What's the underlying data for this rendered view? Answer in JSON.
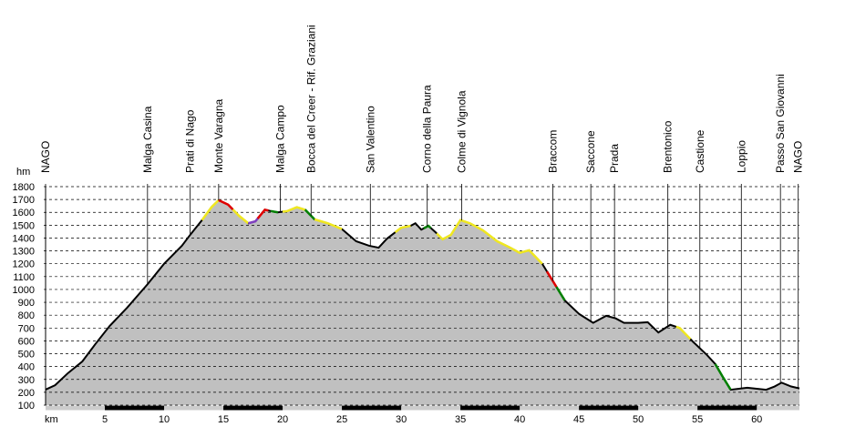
{
  "chart_data": {
    "type": "area",
    "ylabel": "hm",
    "xlabel": "km",
    "xlim": [
      0,
      63.6
    ],
    "ylim": [
      100,
      1800
    ],
    "xticks": [
      5,
      10,
      15,
      20,
      25,
      30,
      35,
      40,
      45,
      50,
      55,
      60
    ],
    "yticks": [
      100,
      200,
      300,
      400,
      500,
      600,
      700,
      800,
      900,
      1000,
      1100,
      1200,
      1300,
      1400,
      1500,
      1600,
      1700,
      1800
    ],
    "grid": true,
    "color": "#c0c0c0",
    "line_color": "#000000",
    "x": [
      0,
      0.8,
      1.9,
      3.1,
      4.2,
      5.4,
      6.9,
      8.6,
      10,
      11.5,
      12.2,
      13.2,
      14.0,
      14.6,
      15.4,
      16.3,
      17.1,
      17.7,
      18.5,
      19.0,
      19.6,
      20.4,
      21.2,
      21.9,
      22.7,
      23.8,
      25.0,
      26.2,
      27.3,
      28.1,
      28.8,
      30.0,
      30.8,
      31.2,
      31.7,
      32.3,
      32.9,
      33.5,
      34.2,
      35.0,
      35.8,
      36.9,
      38.1,
      39.2,
      40.0,
      40.8,
      41.9,
      43.1,
      43.8,
      45.0,
      46.2,
      47.3,
      48.1,
      48.8,
      50.0,
      50.8,
      51.7,
      52.7,
      53.5,
      54.6,
      55.8,
      56.5,
      57.1,
      57.8,
      59.2,
      60.8,
      61.5,
      62.1,
      62.9,
      63.6
    ],
    "values": [
      221,
      255,
      350,
      440,
      575,
      715,
      860,
      1040,
      1200,
      1340,
      1425,
      1540,
      1640,
      1695,
      1660,
      1575,
      1515,
      1530,
      1620,
      1610,
      1600,
      1610,
      1640,
      1620,
      1545,
      1515,
      1470,
      1375,
      1340,
      1325,
      1395,
      1480,
      1495,
      1515,
      1465,
      1495,
      1445,
      1390,
      1425,
      1540,
      1515,
      1460,
      1375,
      1325,
      1285,
      1305,
      1200,
      1020,
      915,
      810,
      740,
      795,
      775,
      740,
      740,
      745,
      665,
      725,
      700,
      595,
      490,
      420,
      325,
      220,
      235,
      220,
      245,
      275,
      245,
      230
    ],
    "highlights": [
      {
        "from": 13.2,
        "to": 14.6,
        "color": "#f0e820"
      },
      {
        "from": 14.6,
        "to": 15.8,
        "color": "#e00000"
      },
      {
        "from": 15.8,
        "to": 17.1,
        "color": "#f0e820"
      },
      {
        "from": 17.1,
        "to": 17.9,
        "color": "#8040c0"
      },
      {
        "from": 17.9,
        "to": 18.8,
        "color": "#e00000"
      },
      {
        "from": 19.0,
        "to": 19.6,
        "color": "#008000"
      },
      {
        "from": 20.0,
        "to": 21.9,
        "color": "#f0e820"
      },
      {
        "from": 21.9,
        "to": 22.7,
        "color": "#008000"
      },
      {
        "from": 22.7,
        "to": 25.0,
        "color": "#f0e820"
      },
      {
        "from": 29.5,
        "to": 30.8,
        "color": "#f0e820"
      },
      {
        "from": 31.9,
        "to": 32.5,
        "color": "#008000"
      },
      {
        "from": 33.0,
        "to": 41.9,
        "color": "#f0e820"
      },
      {
        "from": 42.3,
        "to": 43.1,
        "color": "#e00000"
      },
      {
        "from": 43.1,
        "to": 43.8,
        "color": "#008000"
      },
      {
        "from": 53.2,
        "to": 54.4,
        "color": "#f0e820"
      },
      {
        "from": 56.5,
        "to": 57.8,
        "color": "#008000"
      }
    ],
    "waypoints": [
      {
        "name": "NAGO",
        "km": 0
      },
      {
        "name": "Malga Casina",
        "km": 8.6
      },
      {
        "name": "Prati di Nago",
        "km": 12.2
      },
      {
        "name": "Monte Varagna",
        "km": 14.6
      },
      {
        "name": "Malga Campo",
        "km": 19.8
      },
      {
        "name": "Bocca del Creer - Rif. Graziani",
        "km": 22.4
      },
      {
        "name": "San Valentino",
        "km": 27.4
      },
      {
        "name": "Corno della Paura",
        "km": 32.2
      },
      {
        "name": "Colme di Vignola",
        "km": 35.1
      },
      {
        "name": "Braccom",
        "km": 42.8
      },
      {
        "name": "Saccone",
        "km": 46.0
      },
      {
        "name": "Prada",
        "km": 48.0
      },
      {
        "name": "Brentonico",
        "km": 52.5
      },
      {
        "name": "Castione",
        "km": 55.2
      },
      {
        "name": "Loppio",
        "km": 58.7
      },
      {
        "name": "Passo San Giovanni",
        "km": 62.0
      },
      {
        "name": "NAGO",
        "km": 63.5
      }
    ]
  }
}
